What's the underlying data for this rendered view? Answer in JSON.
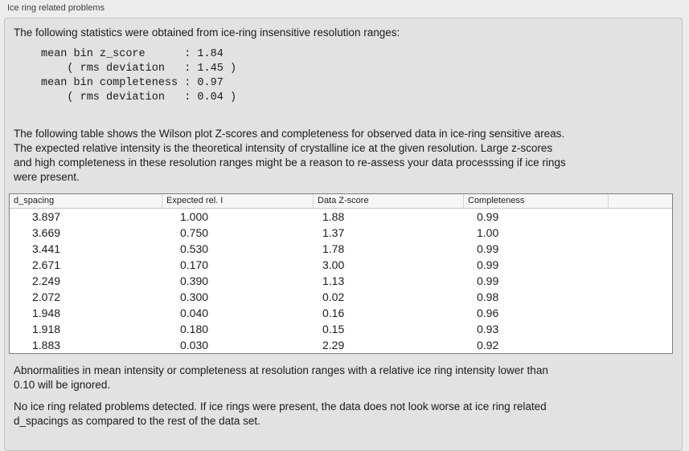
{
  "groupbox": {
    "title": "Ice ring related problems"
  },
  "stats": {
    "intro": "The following statistics were obtained from ice-ring insensitive resolution ranges:",
    "block": "mean bin z_score      : 1.84\n    ( rms deviation   : 1.45 )\nmean bin completeness : 0.97\n    ( rms deviation   : 0.04 )"
  },
  "table_description": "The following table shows the Wilson plot Z-scores and completeness for observed data in ice-ring sensitive areas.\nThe expected relative intensity is the theoretical intensity of crystalline ice at the given resolution. Large z-scores\nand high completeness in these resolution ranges might be a reason to re-assess your data processsing if ice rings\nwere present.",
  "table": {
    "columns": [
      "d_spacing",
      "Expected rel. I",
      "Data Z-score",
      "Completeness",
      ""
    ],
    "rows": [
      [
        "3.897",
        "1.000",
        "1.88",
        "0.99"
      ],
      [
        "3.669",
        "0.750",
        "1.37",
        "1.00"
      ],
      [
        "3.441",
        "0.530",
        "1.78",
        "0.99"
      ],
      [
        "2.671",
        "0.170",
        "3.00",
        "0.99"
      ],
      [
        "2.249",
        "0.390",
        "1.13",
        "0.99"
      ],
      [
        "2.072",
        "0.300",
        "0.02",
        "0.98"
      ],
      [
        "1.948",
        "0.040",
        "0.16",
        "0.96"
      ],
      [
        "1.918",
        "0.180",
        "0.15",
        "0.93"
      ],
      [
        "1.883",
        "0.030",
        "2.29",
        "0.92"
      ]
    ]
  },
  "notes": {
    "ignore_note": "Abnormalities in mean intensity or completeness at resolution ranges with a relative ice ring intensity lower than\n0.10 will be ignored.",
    "conclusion": "No ice ring related problems detected. If ice rings were present, the data does not look worse at ice ring related\nd_spacings as compared to the rest of the data set."
  },
  "colors": {
    "page_bg": "#ececec",
    "box_bg": "#e2e2e2",
    "box_border": "#c2c2c2",
    "label_text": "#3f3f3f",
    "text": "#1b1b1b",
    "table_bg": "#ffffff",
    "table_border": "#7f7f7f",
    "header_bg": "#f6f6f6",
    "header_divider": "#c6c6c6",
    "header_divider2": "#d4d4d4",
    "header_text": "#222222"
  }
}
